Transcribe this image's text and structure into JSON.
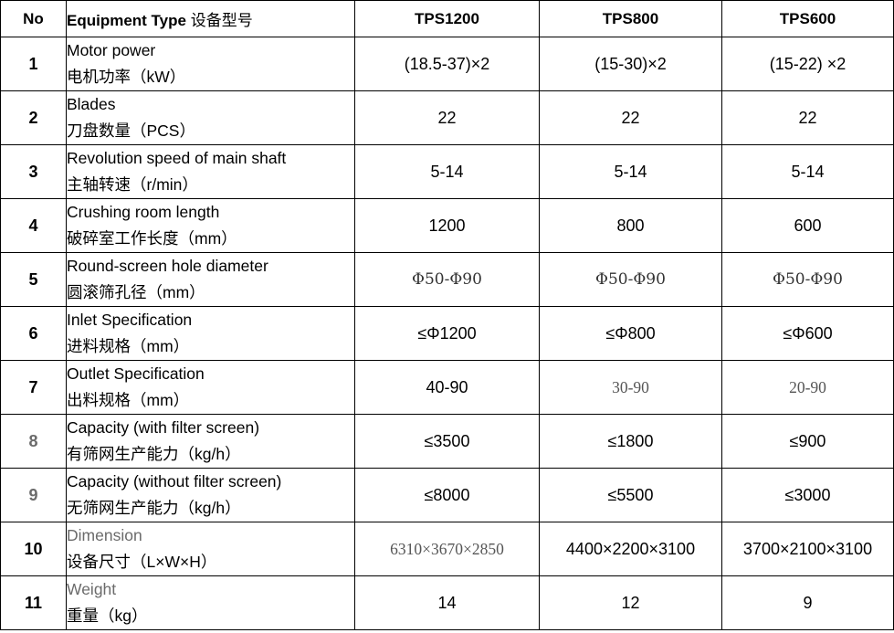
{
  "header": {
    "no": "No",
    "type_en": "Equipment Type",
    "type_zh": "设备型号",
    "models": [
      "TPS1200",
      "TPS800",
      "TPS600"
    ]
  },
  "rows": [
    {
      "no": "1",
      "en": "Motor power",
      "zh": "电机功率（kW）",
      "values": [
        "(18.5-37)×2",
        "(15-30)×2",
        "(15-22) ×2"
      ]
    },
    {
      "no": "2",
      "en": "Blades",
      "zh": "刀盘数量（PCS）",
      "values": [
        "22",
        "22",
        "22"
      ]
    },
    {
      "no": "3",
      "en": "Revolution speed of main shaft",
      "zh": "主轴转速（r/min）",
      "values": [
        "5-14",
        "5-14",
        "5-14"
      ]
    },
    {
      "no": "4",
      "en": "Crushing room length",
      "zh": "破碎室工作长度（mm）",
      "values": [
        "1200",
        "800",
        "600"
      ]
    },
    {
      "no": "5",
      "en": "Round-screen hole diameter",
      "zh": "圆滚筛孔径（mm）",
      "values": [
        "Φ50-Φ90",
        "Φ50-Φ90",
        "Φ50-Φ90"
      ]
    },
    {
      "no": "6",
      "en": "Inlet Specification",
      "zh": "进料规格（mm）",
      "values": [
        "≤Φ1200",
        "≤Φ800",
        "≤Φ600"
      ]
    },
    {
      "no": "7",
      "en": "Outlet Specification",
      "zh": "出料规格（mm）",
      "values": [
        "40-90",
        "30-90",
        "20-90"
      ]
    },
    {
      "no": "8",
      "en": "Capacity (with filter screen)",
      "zh": "有筛网生产能力（kg/h）",
      "values": [
        "≤3500",
        "≤1800",
        "≤900"
      ]
    },
    {
      "no": "9",
      "en": "Capacity (without filter screen)",
      "zh": "无筛网生产能力（kg/h）",
      "values": [
        "≤8000",
        "≤5500",
        "≤3000"
      ]
    },
    {
      "no": "10",
      "en": "Dimension",
      "zh": "设备尺寸（L×W×H）",
      "values": [
        "6310×3670×2850",
        "4400×2200×3100",
        "3700×2100×3100"
      ]
    },
    {
      "no": "11",
      "en": "Weight",
      "zh": "重量（kg）",
      "values": [
        "14",
        "12",
        "9"
      ]
    }
  ]
}
